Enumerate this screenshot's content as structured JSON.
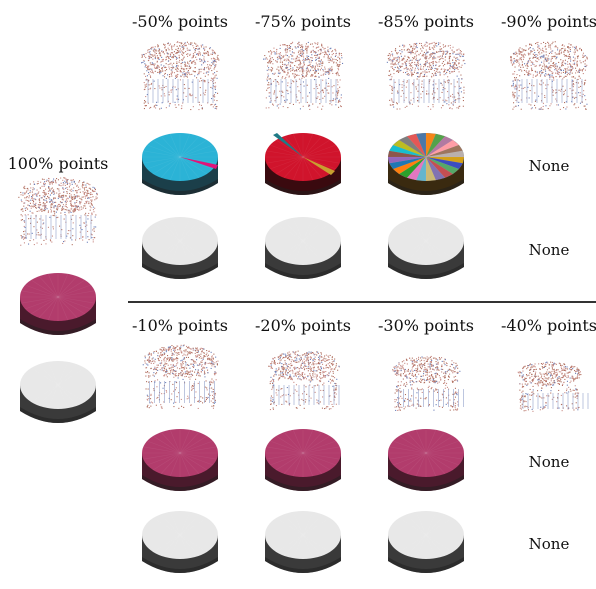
{
  "reference": {
    "label": "100% points",
    "renders": [
      "pointcloud",
      "mesh-magenta",
      "mesh-gray"
    ]
  },
  "top": {
    "columns": [
      "-50% points",
      "-75% points",
      "-85% points",
      "-90% points"
    ],
    "rows": [
      [
        "pointcloud",
        "pointcloud",
        "pointcloud",
        "pointcloud"
      ],
      [
        "mesh-cyan",
        "mesh-red",
        "mesh-multicolor",
        "None"
      ],
      [
        "mesh-gray",
        "mesh-gray",
        "mesh-gray",
        "None"
      ]
    ]
  },
  "bottom": {
    "columns": [
      "-10% points",
      "-20% points",
      "-30% points",
      "-40% points"
    ],
    "rows": [
      [
        "cloud-cut-1",
        "cloud-cut-2",
        "cloud-cut-3",
        "cloud-cut-4"
      ],
      [
        "mesh-magenta",
        "mesh-magenta",
        "mesh-magenta",
        "None"
      ],
      [
        "mesh-gray",
        "mesh-gray",
        "mesh-gray",
        "None"
      ]
    ]
  },
  "colors": {
    "cyan": "#2bb3d6",
    "red": "#d0142c",
    "magenta": "#b23c6c",
    "gray_top": "#e8e8e8",
    "side_dark": "#3a3a3a",
    "points": "#c98c86"
  }
}
